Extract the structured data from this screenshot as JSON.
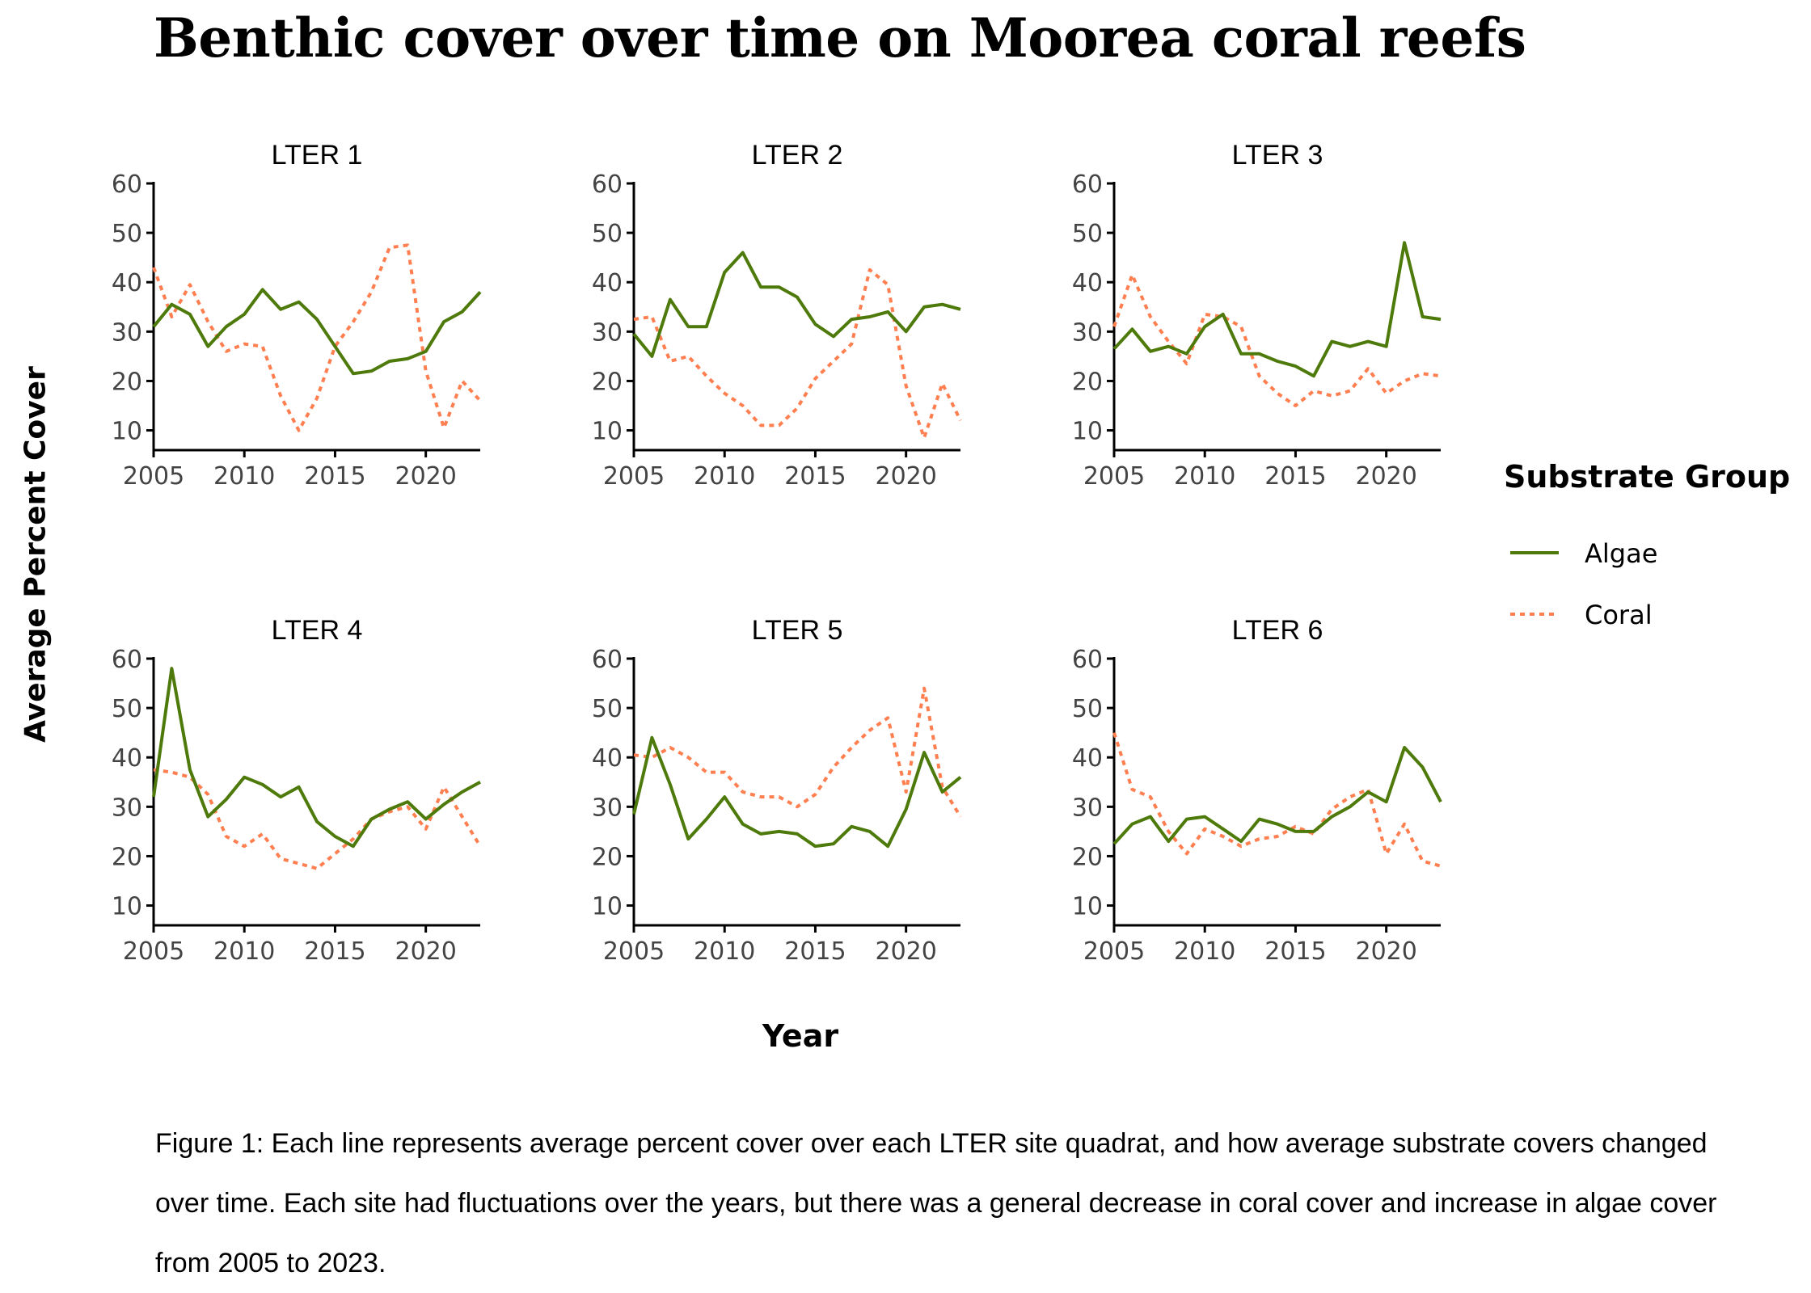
{
  "chart_data": {
    "type": "line",
    "title": "Benthic cover over time on Moorea coral reefs",
    "xlabel": "Year",
    "ylabel": "Average Percent Cover",
    "xlim": [
      2005,
      2023
    ],
    "ylim": [
      6,
      60
    ],
    "xticks": [
      2005,
      2010,
      2015,
      2020
    ],
    "yticks": [
      10,
      20,
      30,
      40,
      50,
      60
    ],
    "legend": {
      "title": "Substrate Group",
      "position": "right",
      "entries": [
        {
          "label": "Algae",
          "color": "#4d7a0a",
          "style": "solid"
        },
        {
          "label": "Coral",
          "color": "#ff7f50",
          "style": "dotted"
        }
      ]
    },
    "years": [
      2005,
      2006,
      2007,
      2008,
      2009,
      2010,
      2011,
      2012,
      2013,
      2014,
      2015,
      2016,
      2017,
      2018,
      2019,
      2020,
      2021,
      2022,
      2023
    ],
    "panels": [
      {
        "title": "LTER 1",
        "algae": [
          31,
          35.5,
          33.5,
          27,
          31,
          33.5,
          38.5,
          34.5,
          36,
          32.5,
          27,
          21.5,
          22,
          24,
          24.5,
          26,
          32,
          34,
          38
        ],
        "coral": [
          43,
          33,
          39.5,
          32,
          26,
          27.5,
          27,
          17,
          10,
          16.5,
          27,
          32,
          38,
          47,
          47.5,
          22,
          10.5,
          20,
          16
        ]
      },
      {
        "title": "LTER 2",
        "algae": [
          29.5,
          25,
          36.5,
          31,
          31,
          42,
          46,
          39,
          39,
          37,
          31.5,
          29,
          32.5,
          33,
          34,
          30,
          35,
          35.5,
          34.5
        ],
        "coral": [
          32.5,
          33,
          24,
          25,
          21,
          17.5,
          15,
          11,
          11,
          14.5,
          20.5,
          24,
          27.5,
          42.5,
          39.5,
          19,
          8.5,
          19.5,
          12
        ]
      },
      {
        "title": "LTER 3",
        "algae": [
          26.5,
          30.5,
          26,
          27,
          25.5,
          31,
          33.5,
          25.5,
          25.5,
          24,
          23,
          21,
          28,
          27,
          28,
          27,
          48,
          33,
          32.5
        ],
        "coral": [
          31,
          41.5,
          33,
          28,
          23.5,
          33.5,
          33,
          31,
          21,
          17.5,
          15,
          18,
          17,
          18,
          22.5,
          17.5,
          20,
          21.5,
          21
        ]
      },
      {
        "title": "LTER 4",
        "algae": [
          32,
          58,
          37.5,
          28,
          31.5,
          36,
          34.5,
          32,
          34,
          27,
          24,
          22,
          27.5,
          29.5,
          31,
          27.5,
          30.5,
          33,
          35
        ],
        "coral": [
          37.5,
          37,
          36,
          32.5,
          24,
          22,
          24.5,
          19.5,
          18.5,
          17.5,
          20.5,
          23.5,
          27.5,
          29,
          30,
          25.5,
          34,
          28,
          22
        ]
      },
      {
        "title": "LTER 5",
        "algae": [
          28.5,
          44,
          34.5,
          23.5,
          27.5,
          32,
          26.5,
          24.5,
          25,
          24.5,
          22,
          22.5,
          26,
          25,
          22,
          29.5,
          41,
          33,
          36
        ],
        "coral": [
          40.5,
          40,
          42,
          40,
          37,
          37,
          33,
          32,
          32,
          30,
          32.5,
          38,
          42,
          45.5,
          48,
          33,
          54,
          34,
          28
        ]
      },
      {
        "title": "LTER 6",
        "algae": [
          22.5,
          26.5,
          28,
          23,
          27.5,
          28,
          25.5,
          23,
          27.5,
          26.5,
          25,
          25,
          28,
          30,
          33,
          31,
          42,
          38,
          31
        ],
        "coral": [
          45,
          33.5,
          32,
          25,
          20.5,
          25.5,
          24,
          22,
          23.5,
          24,
          26,
          24.5,
          29.5,
          32,
          33.5,
          20.5,
          26.5,
          19,
          18
        ]
      }
    ]
  },
  "caption": "Figure 1: Each line represents average percent cover over each LTER site quadrat, and how average substrate covers changed over time. Each site had fluctuations over the years, but there was a general decrease in coral cover and increase in algae cover from 2005 to 2023."
}
